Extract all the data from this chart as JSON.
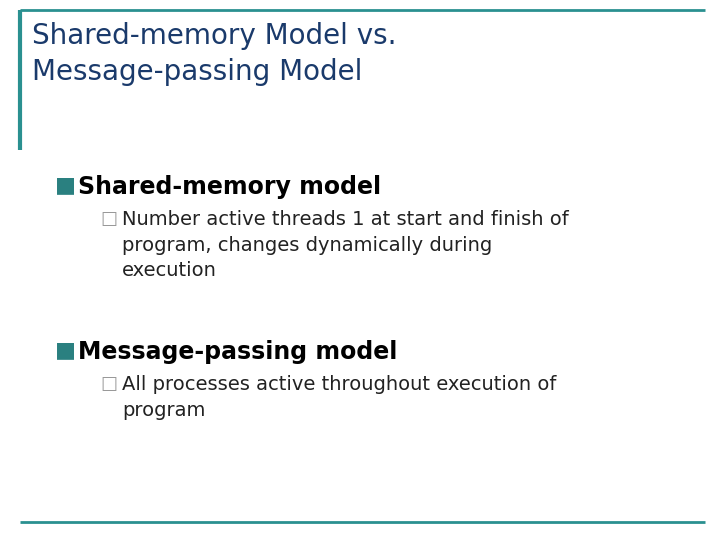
{
  "title_line1": "Shared-memory Model vs.",
  "title_line2": "Message-passing Model",
  "title_color": "#1a3a6b",
  "background_color": "#ffffff",
  "border_color": "#2a9090",
  "bullet1_text": "Shared-memory model",
  "bullet1_marker_color": "#2a8080",
  "sub_bullet1_text": "Number active threads 1 at start and finish of\nprogram, changes dynamically during\nexecution",
  "sub_bullet1_color": "#222222",
  "sub_bullet1_marker_color": "#999999",
  "bullet2_text": "Message-passing model",
  "bullet2_marker_color": "#2a8080",
  "sub_bullet2_text": "All processes active throughout execution of\nprogram",
  "sub_bullet2_color": "#222222",
  "sub_bullet2_marker_color": "#999999",
  "title_fontsize": 20,
  "bullet_fontsize": 17,
  "sub_bullet_fontsize": 14
}
